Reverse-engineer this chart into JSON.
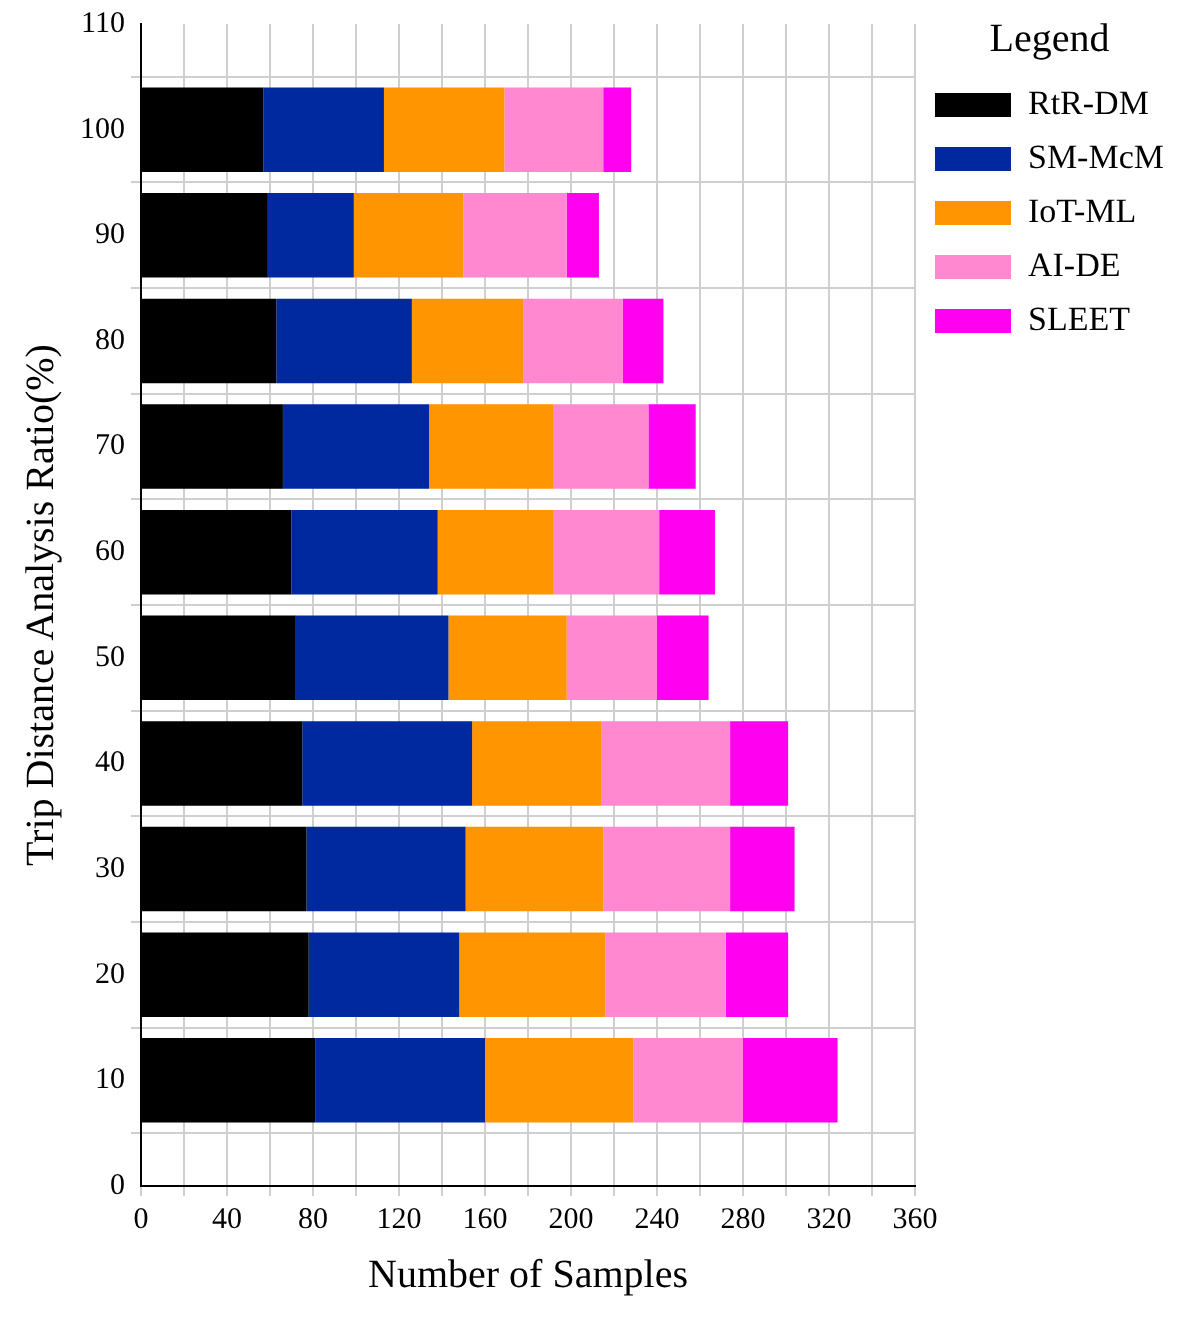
{
  "chart_data": {
    "type": "bar",
    "orientation": "horizontal",
    "stacked": true,
    "x": [
      10,
      20,
      30,
      40,
      50,
      60,
      70,
      80,
      90,
      100
    ],
    "series": [
      {
        "name": "RtR-DM",
        "color": "#000000",
        "values": [
          81,
          78,
          77,
          75,
          72,
          70,
          66,
          63,
          59,
          57
        ]
      },
      {
        "name": "SM-McM",
        "color": "#0029a0",
        "values": [
          79,
          70,
          74,
          79,
          71,
          68,
          68,
          63,
          40,
          56
        ]
      },
      {
        "name": "IoT-ML",
        "color": "#ff9500",
        "values": [
          69,
          68,
          64,
          60,
          55,
          54,
          58,
          52,
          51,
          56
        ]
      },
      {
        "name": "AI-DE",
        "color": "#ff88d0",
        "values": [
          51,
          56,
          59,
          60,
          42,
          49,
          44,
          46,
          48,
          46
        ]
      },
      {
        "name": "SLEET",
        "color": "#ff00f0",
        "values": [
          44,
          29,
          30,
          27,
          24,
          26,
          22,
          19,
          15,
          13
        ]
      }
    ],
    "xlabel": "Number of Samples",
    "ylabel": "Trip Distance Analysis Ratio(%)",
    "xlim": [
      0,
      360
    ],
    "xticks": [
      0,
      {
        "value": 20,
        "label": null
      },
      40,
      {
        "value": 60,
        "label": null
      },
      80,
      {
        "value": 100,
        "label": null
      },
      120,
      {
        "value": 140,
        "label": null
      },
      160,
      {
        "value": 180,
        "label": null
      },
      200,
      {
        "value": 220,
        "label": null
      },
      240,
      {
        "value": 260,
        "label": null
      },
      280,
      {
        "value": 300,
        "label": null
      },
      320,
      {
        "value": 340,
        "label": null
      },
      360
    ],
    "ylim": [
      0,
      110
    ],
    "yticks": [
      0,
      10,
      20,
      30,
      40,
      50,
      60,
      70,
      80,
      90,
      100,
      110
    ],
    "grid": true,
    "legend": "top right",
    "legend_title": "Legend"
  }
}
